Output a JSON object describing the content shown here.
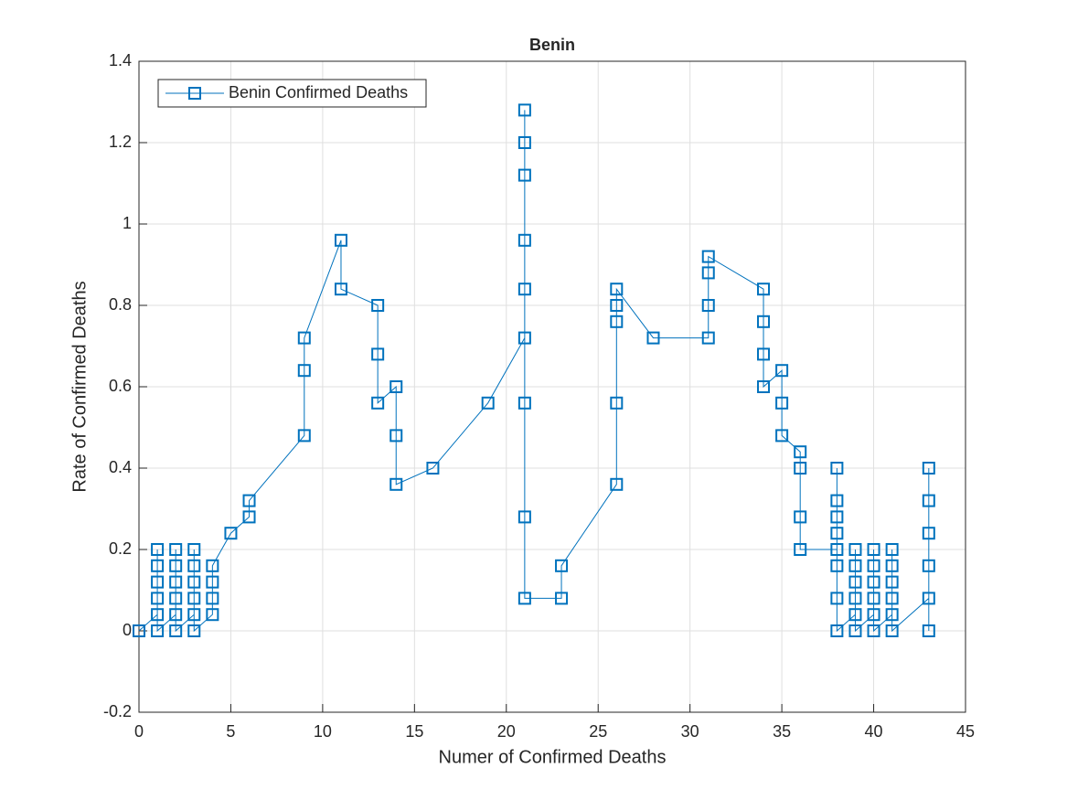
{
  "chart_data": {
    "type": "line",
    "title": "Benin",
    "xlabel": "Numer of Confirmed Deaths",
    "ylabel": "Rate of Confirmed Deaths",
    "x": [
      0,
      1,
      1,
      1,
      1,
      1,
      1,
      2,
      2,
      2,
      2,
      2,
      2,
      3,
      3,
      3,
      3,
      3,
      3,
      4,
      4,
      4,
      4,
      5,
      6,
      6,
      9,
      9,
      9,
      11,
      11,
      13,
      13,
      13,
      14,
      14,
      14,
      16,
      19,
      21,
      21,
      21,
      21,
      21,
      21,
      21,
      21,
      21,
      23,
      23,
      26,
      26,
      26,
      26,
      26,
      28,
      31,
      31,
      31,
      31,
      34,
      34,
      34,
      34,
      35,
      35,
      35,
      36,
      36,
      36,
      36,
      38,
      38,
      38,
      38,
      38,
      38,
      38,
      38,
      39,
      39,
      39,
      39,
      39,
      39,
      40,
      40,
      40,
      40,
      40,
      40,
      41,
      41,
      41,
      41,
      41,
      41,
      43,
      43,
      43,
      43,
      43,
      43
    ],
    "series": [
      {
        "name": "Benin Confirmed Deaths",
        "color": "#0072bd",
        "values": [
          0,
          0.04,
          0.08,
          0.12,
          0.16,
          0.2,
          0,
          0.04,
          0.08,
          0.12,
          0.16,
          0.2,
          0,
          0.04,
          0.08,
          0.12,
          0.16,
          0.2,
          0,
          0.04,
          0.08,
          0.12,
          0.16,
          0.24,
          0.28,
          0.32,
          0.48,
          0.64,
          0.72,
          0.96,
          0.84,
          0.8,
          0.68,
          0.56,
          0.6,
          0.48,
          0.36,
          0.4,
          0.56,
          0.72,
          0.84,
          0.96,
          1.12,
          1.2,
          1.28,
          0.56,
          0.28,
          0.08,
          0.08,
          0.16,
          0.36,
          0.56,
          0.76,
          0.8,
          0.84,
          0.72,
          0.72,
          0.8,
          0.88,
          0.92,
          0.84,
          0.76,
          0.68,
          0.6,
          0.64,
          0.56,
          0.48,
          0.44,
          0.4,
          0.28,
          0.2,
          0.2,
          0.24,
          0.28,
          0.32,
          0.4,
          0.16,
          0.08,
          0,
          0.04,
          0.08,
          0.12,
          0.16,
          0.2,
          0,
          0.04,
          0.08,
          0.12,
          0.16,
          0.2,
          0,
          0.04,
          0.08,
          0.12,
          0.16,
          0.2,
          0,
          0.08,
          0.16,
          0.24,
          0.32,
          0.4,
          0
        ]
      }
    ],
    "xlim": [
      0,
      45
    ],
    "xticks": [
      0,
      5,
      10,
      15,
      20,
      25,
      30,
      35,
      40,
      45
    ],
    "ylim": [
      -0.2,
      1.4
    ],
    "yticks": [
      -0.2,
      0,
      0.2,
      0.4,
      0.6,
      0.8,
      1,
      1.2,
      1.4
    ],
    "grid": true,
    "legend": "upper left"
  }
}
